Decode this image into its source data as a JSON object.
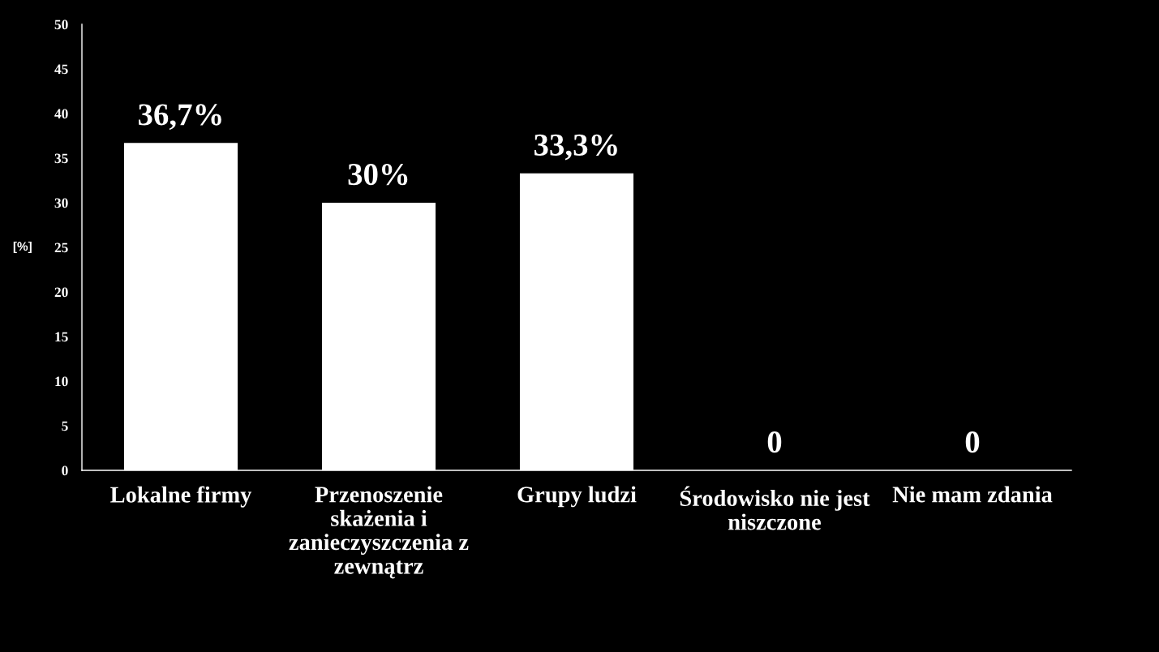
{
  "chart_data": {
    "type": "bar",
    "ylabel": "[%]",
    "categories": [
      "Lokalne firmy",
      "Przenoszenie skażenia i zanieczyszczenia z zewnątrz",
      "Grupy ludzi",
      "Środowisko nie jest niszczone",
      "Nie mam zdania"
    ],
    "values": [
      36.7,
      30,
      33.3,
      0,
      0
    ],
    "value_labels": [
      "36,7%",
      "30%",
      "33,3%",
      "0",
      "0"
    ],
    "color": "#ffffff",
    "ylim": [
      0,
      50
    ],
    "yticks": [
      0,
      5,
      10,
      15,
      20,
      25,
      30,
      35,
      40,
      45,
      50
    ]
  }
}
